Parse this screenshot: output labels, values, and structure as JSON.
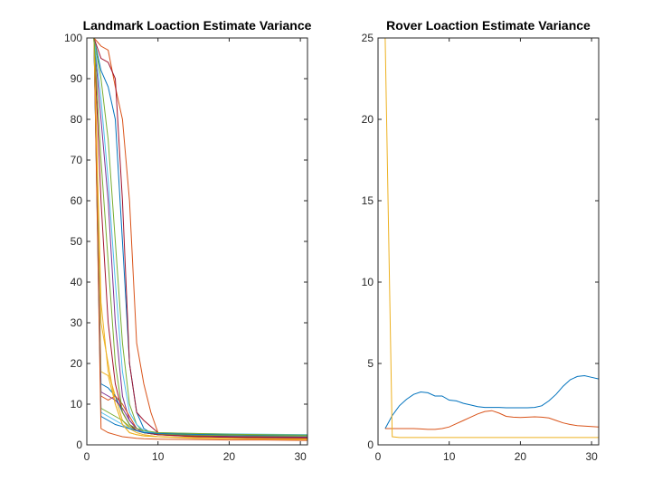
{
  "chart_data": [
    {
      "type": "line",
      "title": "Landmark Loaction Estimate Variance",
      "xlabel": "",
      "ylabel": "",
      "xlim": [
        0,
        31
      ],
      "ylim": [
        0,
        100
      ],
      "xticks": [
        0,
        10,
        20,
        30
      ],
      "yticks": [
        0,
        10,
        20,
        30,
        40,
        50,
        60,
        70,
        80,
        90,
        100
      ],
      "grid": false,
      "series": [
        {
          "color": "#0072BD",
          "x": [
            1,
            2,
            3,
            4,
            5,
            6,
            7,
            8,
            9,
            10,
            15,
            20,
            25,
            31
          ],
          "y": [
            100,
            92,
            88,
            80,
            50,
            20,
            8,
            4,
            3,
            2.5,
            2.2,
            2.1,
            2.0,
            2.0
          ]
        },
        {
          "color": "#D95319",
          "x": [
            1,
            2,
            3,
            4,
            5,
            6,
            7,
            8,
            9,
            10,
            15,
            20,
            25,
            31
          ],
          "y": [
            100,
            98,
            97,
            88,
            80,
            60,
            25,
            15,
            8,
            3,
            2.3,
            2.0,
            1.8,
            1.7
          ]
        },
        {
          "color": "#EDB120",
          "x": [
            1,
            2,
            3,
            4,
            5,
            6,
            7,
            8,
            10,
            15,
            20,
            25,
            31
          ],
          "y": [
            100,
            35,
            18,
            12,
            6,
            4,
            3,
            2.5,
            2,
            1.6,
            1.5,
            1.4,
            1.3
          ]
        },
        {
          "color": "#7E2F8E",
          "x": [
            1,
            2,
            3,
            4,
            5,
            6,
            7,
            8,
            10,
            15,
            20,
            25,
            31
          ],
          "y": [
            100,
            80,
            60,
            30,
            12,
            6,
            4,
            3,
            2.5,
            2,
            1.8,
            1.6,
            1.5
          ]
        },
        {
          "color": "#77AC30",
          "x": [
            1,
            2,
            3,
            4,
            5,
            6,
            7,
            8,
            10,
            15,
            20,
            25,
            31
          ],
          "y": [
            100,
            90,
            75,
            50,
            25,
            10,
            5,
            3,
            2.5,
            2.6,
            2.6,
            2.5,
            2.4
          ]
        },
        {
          "color": "#4DBEEE",
          "x": [
            1,
            2,
            3,
            4,
            5,
            6,
            7,
            8,
            10,
            15,
            20,
            25,
            31
          ],
          "y": [
            100,
            85,
            65,
            40,
            18,
            8,
            5,
            3.5,
            3,
            2.5,
            2.3,
            2.2,
            2.1
          ]
        },
        {
          "color": "#A2142F",
          "x": [
            1,
            2,
            3,
            4,
            5,
            6,
            7,
            8,
            10,
            15,
            20,
            25,
            31
          ],
          "y": [
            100,
            95,
            94,
            90,
            60,
            20,
            8,
            6,
            3,
            2.2,
            2,
            1.8,
            1.7
          ]
        },
        {
          "color": "#0072BD",
          "x": [
            1,
            2,
            3,
            4,
            5,
            6,
            7,
            8,
            10,
            15,
            20,
            25,
            31
          ],
          "y": [
            100,
            15,
            14,
            12,
            8,
            5,
            3.5,
            3,
            2.5,
            2.2,
            2,
            1.9,
            1.8
          ]
        },
        {
          "color": "#D95319",
          "x": [
            1,
            2,
            3,
            4,
            5,
            6,
            7,
            8,
            10,
            15,
            20,
            25,
            31
          ],
          "y": [
            100,
            12,
            11,
            12,
            10,
            7,
            4,
            3,
            2.5,
            2.2,
            2,
            1.9,
            1.8
          ]
        },
        {
          "color": "#EDB120",
          "x": [
            1,
            2,
            3,
            4,
            5,
            6,
            7,
            8,
            10,
            15,
            20,
            25,
            31
          ],
          "y": [
            100,
            18,
            17,
            10,
            5,
            3,
            2.5,
            2.2,
            2,
            1.8,
            1.6,
            1.5,
            1.5
          ]
        },
        {
          "color": "#7E2F8E",
          "x": [
            1,
            2,
            3,
            4,
            5,
            6,
            7,
            8,
            10,
            15,
            20,
            25,
            31
          ],
          "y": [
            100,
            13,
            12,
            11,
            9,
            6,
            4,
            3,
            2.6,
            2.3,
            2.1,
            2,
            1.9
          ]
        },
        {
          "color": "#77AC30",
          "x": [
            1,
            2,
            3,
            4,
            5,
            6,
            7,
            8,
            10,
            15,
            20,
            25,
            31
          ],
          "y": [
            100,
            9,
            8,
            7,
            6,
            4.5,
            3.5,
            3,
            2.6,
            2.4,
            2.3,
            2.2,
            2.2
          ]
        },
        {
          "color": "#4DBEEE",
          "x": [
            1,
            2,
            3,
            4,
            5,
            6,
            7,
            8,
            10,
            15,
            20,
            25,
            31
          ],
          "y": [
            100,
            8,
            7,
            6,
            5,
            4,
            3.5,
            3.2,
            3,
            2.8,
            2.7,
            2.6,
            2.5
          ]
        },
        {
          "color": "#A2142F",
          "x": [
            1,
            2,
            3,
            4,
            5,
            6,
            7,
            8,
            10,
            15,
            20,
            25,
            31
          ],
          "y": [
            100,
            60,
            30,
            15,
            8,
            5,
            3.5,
            3,
            2.5,
            2.1,
            1.9,
            1.8,
            1.7
          ]
        },
        {
          "color": "#0072BD",
          "x": [
            1,
            2,
            3,
            4,
            5,
            6,
            7,
            8,
            10,
            15,
            20,
            25,
            31
          ],
          "y": [
            100,
            7,
            6,
            5,
            4.5,
            4,
            3.5,
            3,
            2.8,
            2.6,
            2.5,
            2.4,
            2.4
          ]
        },
        {
          "color": "#D95319",
          "x": [
            1,
            2,
            3,
            4,
            5,
            6,
            7,
            8,
            10,
            15,
            20,
            25,
            31
          ],
          "y": [
            100,
            4,
            3,
            2.5,
            2,
            1.8,
            1.6,
            1.5,
            1.4,
            1.3,
            1.2,
            1.2,
            1.1
          ]
        },
        {
          "color": "#EDB120",
          "x": [
            1,
            2,
            3,
            4,
            5,
            6,
            7,
            8,
            10,
            15,
            20,
            25,
            31
          ],
          "y": [
            100,
            30,
            20,
            10,
            5,
            3,
            2.5,
            2.2,
            2,
            1.8,
            1.6,
            1.5,
            1.4
          ]
        },
        {
          "color": "#77AC30",
          "x": [
            1,
            2,
            3,
            4,
            5,
            6,
            7,
            8,
            10,
            15,
            20,
            25,
            31
          ],
          "y": [
            100,
            70,
            45,
            20,
            8,
            5,
            4,
            3.5,
            3,
            2.8,
            2.6,
            2.5,
            2.4
          ]
        }
      ]
    },
    {
      "type": "line",
      "title": "Rover Loaction Estimate Variance",
      "xlabel": "",
      "ylabel": "",
      "xlim": [
        0,
        31
      ],
      "ylim": [
        0,
        25
      ],
      "xticks": [
        0,
        10,
        20,
        30
      ],
      "yticks": [
        0,
        5,
        10,
        15,
        20,
        25
      ],
      "grid": false,
      "series": [
        {
          "color": "#0072BD",
          "x": [
            1,
            2,
            3,
            4,
            5,
            6,
            7,
            8,
            9,
            10,
            11,
            12,
            13,
            14,
            15,
            16,
            17,
            18,
            19,
            20,
            21,
            22,
            23,
            24,
            25,
            26,
            27,
            28,
            29,
            30,
            31
          ],
          "y": [
            1.0,
            1.8,
            2.4,
            2.8,
            3.1,
            3.25,
            3.2,
            3.0,
            3.0,
            2.75,
            2.7,
            2.55,
            2.45,
            2.35,
            2.3,
            2.3,
            2.3,
            2.28,
            2.28,
            2.28,
            2.28,
            2.3,
            2.4,
            2.7,
            3.1,
            3.6,
            4.0,
            4.2,
            4.25,
            4.15,
            4.05
          ]
        },
        {
          "color": "#D95319",
          "x": [
            1,
            2,
            3,
            4,
            5,
            6,
            7,
            8,
            9,
            10,
            11,
            12,
            13,
            14,
            15,
            16,
            17,
            18,
            19,
            20,
            21,
            22,
            23,
            24,
            25,
            26,
            27,
            28,
            29,
            30,
            31
          ],
          "y": [
            1.0,
            1.0,
            1.0,
            1.0,
            1.0,
            0.98,
            0.95,
            0.95,
            1.0,
            1.1,
            1.3,
            1.5,
            1.7,
            1.9,
            2.05,
            2.1,
            1.95,
            1.75,
            1.7,
            1.68,
            1.7,
            1.72,
            1.7,
            1.65,
            1.5,
            1.35,
            1.25,
            1.18,
            1.15,
            1.12,
            1.1
          ]
        },
        {
          "color": "#EDB120",
          "x": [
            1,
            2,
            3,
            5,
            10,
            15,
            20,
            25,
            31
          ],
          "y": [
            25,
            0.5,
            0.45,
            0.45,
            0.45,
            0.45,
            0.45,
            0.45,
            0.45
          ]
        }
      ]
    }
  ]
}
